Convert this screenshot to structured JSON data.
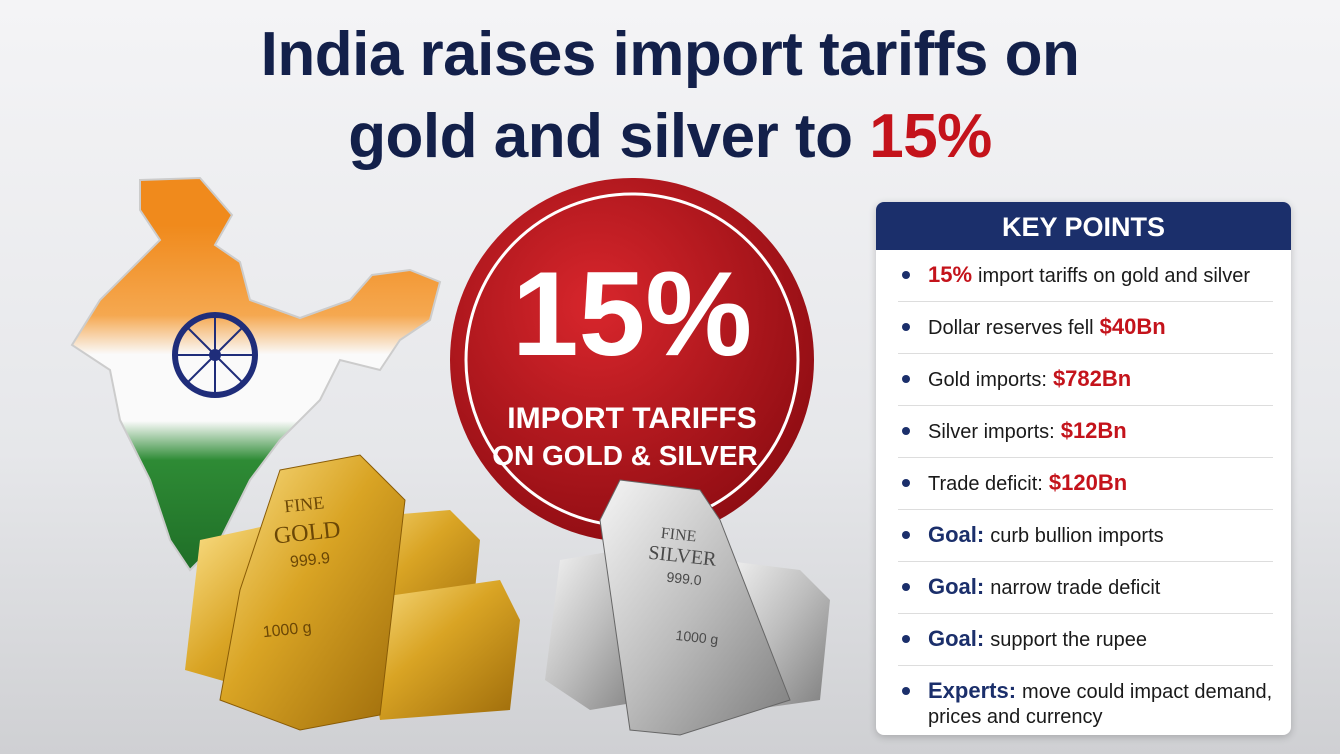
{
  "title": {
    "line1": "India raises import tariffs on",
    "line2": "gold and silver to",
    "highlight": "15%"
  },
  "badge": {
    "figure": "15%",
    "line1": "IMPORT TARIFFS",
    "line2": "ON GOLD & SILVER"
  },
  "gold_bar": {
    "top": "FINE",
    "metal": "GOLD",
    "purity": "999.9",
    "weight": "1000 g"
  },
  "silver_bar": {
    "top": "FINE",
    "metal": "SILVER",
    "purity": "999.0",
    "weight": "1000 g"
  },
  "key_points": {
    "heading": "KEY POINTS",
    "items": [
      {
        "parts": [
          {
            "text": "15%",
            "style": "red"
          },
          {
            "text": "import tariffs on gold and silver",
            "style": "plain"
          }
        ]
      },
      {
        "parts": [
          {
            "text": "Dollar reserves fell",
            "style": "plain"
          },
          {
            "text": "$40Bn",
            "style": "red"
          }
        ]
      },
      {
        "parts": [
          {
            "text": "Gold imports:",
            "style": "plain"
          },
          {
            "text": "$782Bn",
            "style": "red"
          }
        ]
      },
      {
        "parts": [
          {
            "text": "Silver imports:",
            "style": "plain"
          },
          {
            "text": "$12Bn",
            "style": "red"
          }
        ]
      },
      {
        "parts": [
          {
            "text": "Trade deficit:",
            "style": "plain"
          },
          {
            "text": "$120Bn",
            "style": "red"
          }
        ]
      },
      {
        "parts": [
          {
            "text": "Goal:",
            "style": "navy"
          },
          {
            "text": "curb bullion imports",
            "style": "plain"
          }
        ]
      },
      {
        "parts": [
          {
            "text": "Goal:",
            "style": "navy"
          },
          {
            "text": "narrow trade deficit",
            "style": "plain"
          }
        ]
      },
      {
        "parts": [
          {
            "text": "Goal:",
            "style": "navy"
          },
          {
            "text": "support the rupee",
            "style": "plain"
          }
        ]
      },
      {
        "parts": [
          {
            "text": "Experts:",
            "style": "navy"
          },
          {
            "text": "move could impact demand, prices and currency",
            "style": "plain"
          }
        ]
      }
    ]
  }
}
